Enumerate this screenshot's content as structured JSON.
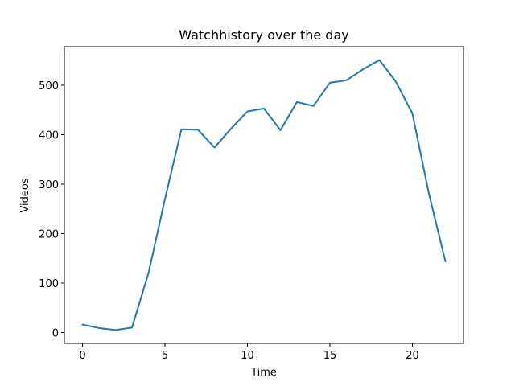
{
  "chart_data": {
    "type": "line",
    "title": "Watchhistory over the day",
    "xlabel": "Time",
    "ylabel": "Videos",
    "xlim": [
      -1.1,
      23.1
    ],
    "ylim": [
      -22,
      578
    ],
    "xticks": [
      0,
      5,
      10,
      15,
      20
    ],
    "yticks": [
      0,
      100,
      200,
      300,
      400,
      500
    ],
    "grid": false,
    "series": [
      {
        "color": "#1f77b4",
        "x": [
          0,
          1,
          2,
          3,
          4,
          5,
          6,
          7,
          8,
          9,
          10,
          11,
          12,
          13,
          14,
          15,
          16,
          17,
          18,
          19,
          20,
          21,
          22
        ],
        "y": [
          16,
          9,
          5,
          10,
          120,
          270,
          411,
          410,
          374,
          412,
          447,
          453,
          409,
          466,
          458,
          505,
          510,
          532,
          551,
          507,
          443,
          281,
          144
        ]
      }
    ]
  }
}
